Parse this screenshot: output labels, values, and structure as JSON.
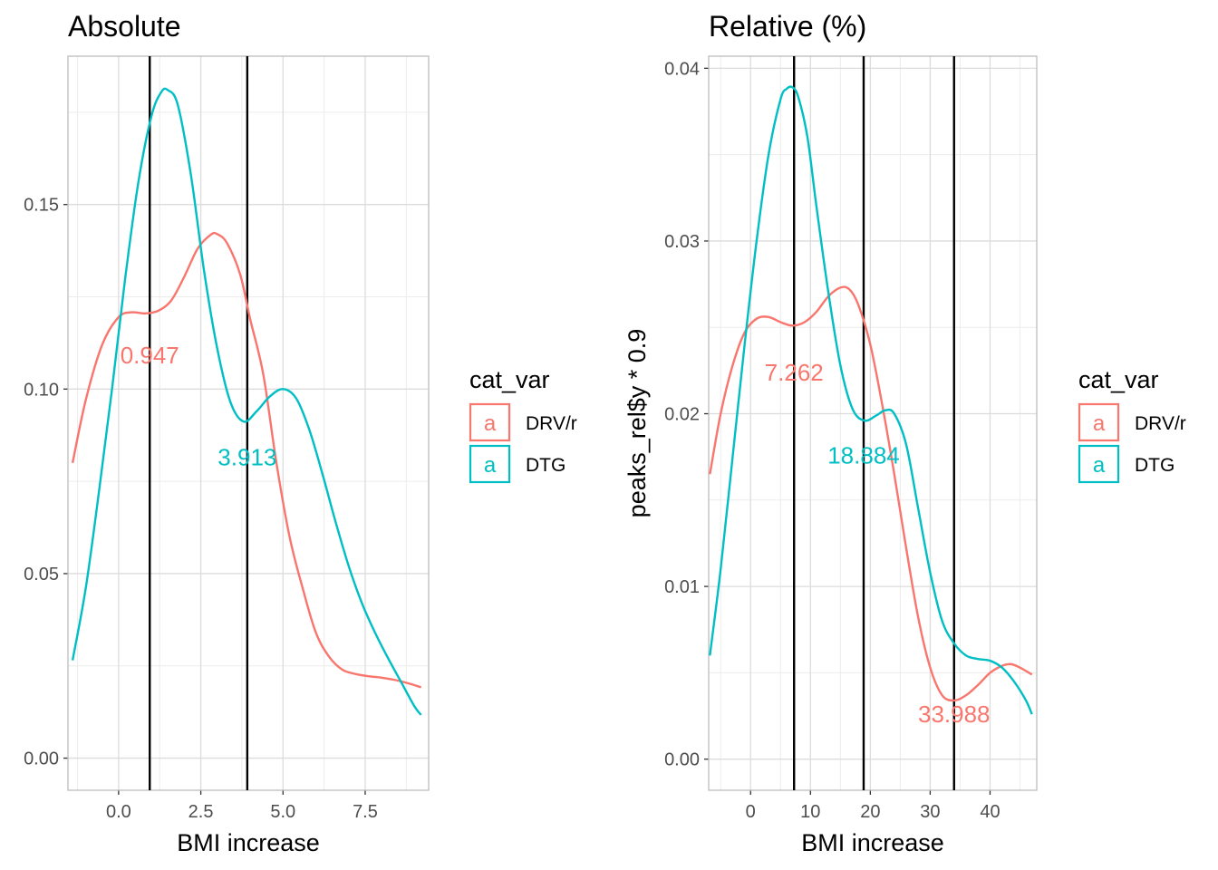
{
  "chart_data": [
    {
      "type": "line",
      "title": "Absolute",
      "xlabel": "BMI increase",
      "ylabel": "",
      "xlim": [
        -1.54,
        9.43
      ],
      "ylim": [
        -0.0087,
        0.1902
      ],
      "x_ticks": [
        0.0,
        2.5,
        5.0,
        7.5
      ],
      "x_tick_labels": [
        "0.0",
        "2.5",
        "5.0",
        "7.5"
      ],
      "y_ticks": [
        0.0,
        0.05,
        0.1,
        0.15
      ],
      "y_tick_labels": [
        "0.00",
        "0.05",
        "0.10",
        "0.15"
      ],
      "grid": true,
      "legend": {
        "title": "cat_var",
        "position": "right",
        "key_glyph": "a",
        "entries": [
          {
            "label": "DRV/r",
            "color": "#F8766D"
          },
          {
            "label": "DTG",
            "color": "#00BFC4"
          }
        ]
      },
      "series": [
        {
          "name": "DRV/r",
          "color": "#F8766D",
          "x": [
            -1.4,
            -1.0,
            -0.5,
            0.0,
            0.4,
            0.8,
            1.2,
            1.6,
            2.0,
            2.4,
            2.8,
            3.0,
            3.3,
            3.7,
            4.0,
            4.4,
            4.8,
            5.2,
            5.6,
            6.0,
            6.4,
            6.8,
            7.2,
            7.6,
            8.0,
            8.4,
            8.8,
            9.2
          ],
          "y": [
            0.08,
            0.097,
            0.112,
            0.1195,
            0.1208,
            0.1205,
            0.1212,
            0.124,
            0.1305,
            0.138,
            0.1418,
            0.142,
            0.1395,
            0.131,
            0.119,
            0.104,
            0.08,
            0.06,
            0.046,
            0.034,
            0.0275,
            0.024,
            0.0228,
            0.0222,
            0.0218,
            0.0212,
            0.0203,
            0.0192
          ]
        },
        {
          "name": "DTG",
          "color": "#00BFC4",
          "x": [
            -1.4,
            -1.0,
            -0.6,
            -0.2,
            0.2,
            0.6,
            1.0,
            1.3,
            1.5,
            1.8,
            2.2,
            2.6,
            3.0,
            3.4,
            3.8,
            4.2,
            4.6,
            5.0,
            5.4,
            5.8,
            6.2,
            6.6,
            7.0,
            7.4,
            7.8,
            8.2,
            8.6,
            9.0,
            9.2
          ],
          "y": [
            0.0265,
            0.046,
            0.072,
            0.1,
            0.13,
            0.156,
            0.174,
            0.1805,
            0.181,
            0.177,
            0.158,
            0.132,
            0.111,
            0.0965,
            0.0912,
            0.094,
            0.098,
            0.1,
            0.0975,
            0.089,
            0.077,
            0.064,
            0.052,
            0.042,
            0.034,
            0.027,
            0.0205,
            0.014,
            0.0117
          ]
        }
      ],
      "vlines": [
        0.947,
        3.913
      ],
      "annotations": [
        {
          "text": "0.947",
          "x": 0.947,
          "y": 0.1092,
          "color": "#F8766D"
        },
        {
          "text": "3.913",
          "x": 3.913,
          "y": 0.0815,
          "color": "#00BFC4"
        }
      ]
    },
    {
      "type": "line",
      "title": "Relative (%)",
      "xlabel": "BMI increase",
      "ylabel": "peaks_rel$y * 0.9",
      "xlim": [
        -7.0,
        47.8
      ],
      "ylim": [
        -0.0018,
        0.0407
      ],
      "x_ticks": [
        0,
        10,
        20,
        30,
        40
      ],
      "x_tick_labels": [
        "0",
        "10",
        "20",
        "30",
        "40"
      ],
      "y_ticks": [
        0.0,
        0.01,
        0.02,
        0.03,
        0.04
      ],
      "y_tick_labels": [
        "0.00",
        "0.01",
        "0.02",
        "0.03",
        "0.04"
      ],
      "grid": true,
      "legend": {
        "title": "cat_var",
        "position": "right",
        "key_glyph": "a",
        "entries": [
          {
            "label": "DRV/r",
            "color": "#F8766D"
          },
          {
            "label": "DTG",
            "color": "#00BFC4"
          }
        ]
      },
      "series": [
        {
          "name": "DRV/r",
          "color": "#F8766D",
          "x": [
            -6.8,
            -5.0,
            -3.0,
            -1.0,
            1.0,
            3.0,
            5.0,
            7.0,
            9.0,
            11.0,
            13.0,
            15.0,
            16.5,
            18.0,
            20.0,
            22.0,
            24.0,
            26.0,
            28.0,
            30.0,
            32.0,
            34.0,
            36.0,
            38.0,
            40.0,
            42.0,
            43.5,
            45.0,
            47.0
          ],
          "y": [
            0.0165,
            0.02,
            0.0228,
            0.0247,
            0.0255,
            0.0256,
            0.0253,
            0.0251,
            0.0253,
            0.0259,
            0.0268,
            0.0273,
            0.0272,
            0.0263,
            0.024,
            0.0205,
            0.0165,
            0.0122,
            0.0082,
            0.0053,
            0.0037,
            0.0034,
            0.0037,
            0.0043,
            0.005,
            0.0054,
            0.0055,
            0.0053,
            0.0049
          ]
        },
        {
          "name": "DTG",
          "color": "#00BFC4",
          "x": [
            -6.8,
            -5.0,
            -3.0,
            -1.0,
            1.0,
            3.0,
            5.0,
            6.0,
            7.0,
            8.0,
            9.5,
            11.0,
            13.0,
            15.0,
            17.0,
            19.0,
            21.0,
            22.5,
            24.0,
            26.0,
            28.0,
            30.0,
            32.0,
            34.0,
            36.0,
            38.0,
            40.0,
            42.0,
            44.0,
            46.0,
            47.0
          ],
          "y": [
            0.006,
            0.011,
            0.0175,
            0.024,
            0.03,
            0.035,
            0.0382,
            0.0388,
            0.0389,
            0.0383,
            0.036,
            0.032,
            0.027,
            0.0228,
            0.0203,
            0.0196,
            0.0199,
            0.0202,
            0.02,
            0.0182,
            0.0145,
            0.0108,
            0.008,
            0.0067,
            0.006,
            0.0058,
            0.0057,
            0.0053,
            0.0045,
            0.0034,
            0.0026
          ]
        }
      ],
      "vlines": [
        7.262,
        18.884,
        33.988
      ],
      "annotations": [
        {
          "text": "7.262",
          "x": 7.262,
          "y": 0.0224,
          "color": "#F8766D"
        },
        {
          "text": "18.884",
          "x": 18.884,
          "y": 0.0176,
          "color": "#00BFC4"
        },
        {
          "text": "33.988",
          "x": 33.988,
          "y": 0.0026,
          "color": "#F8766D"
        }
      ]
    }
  ]
}
